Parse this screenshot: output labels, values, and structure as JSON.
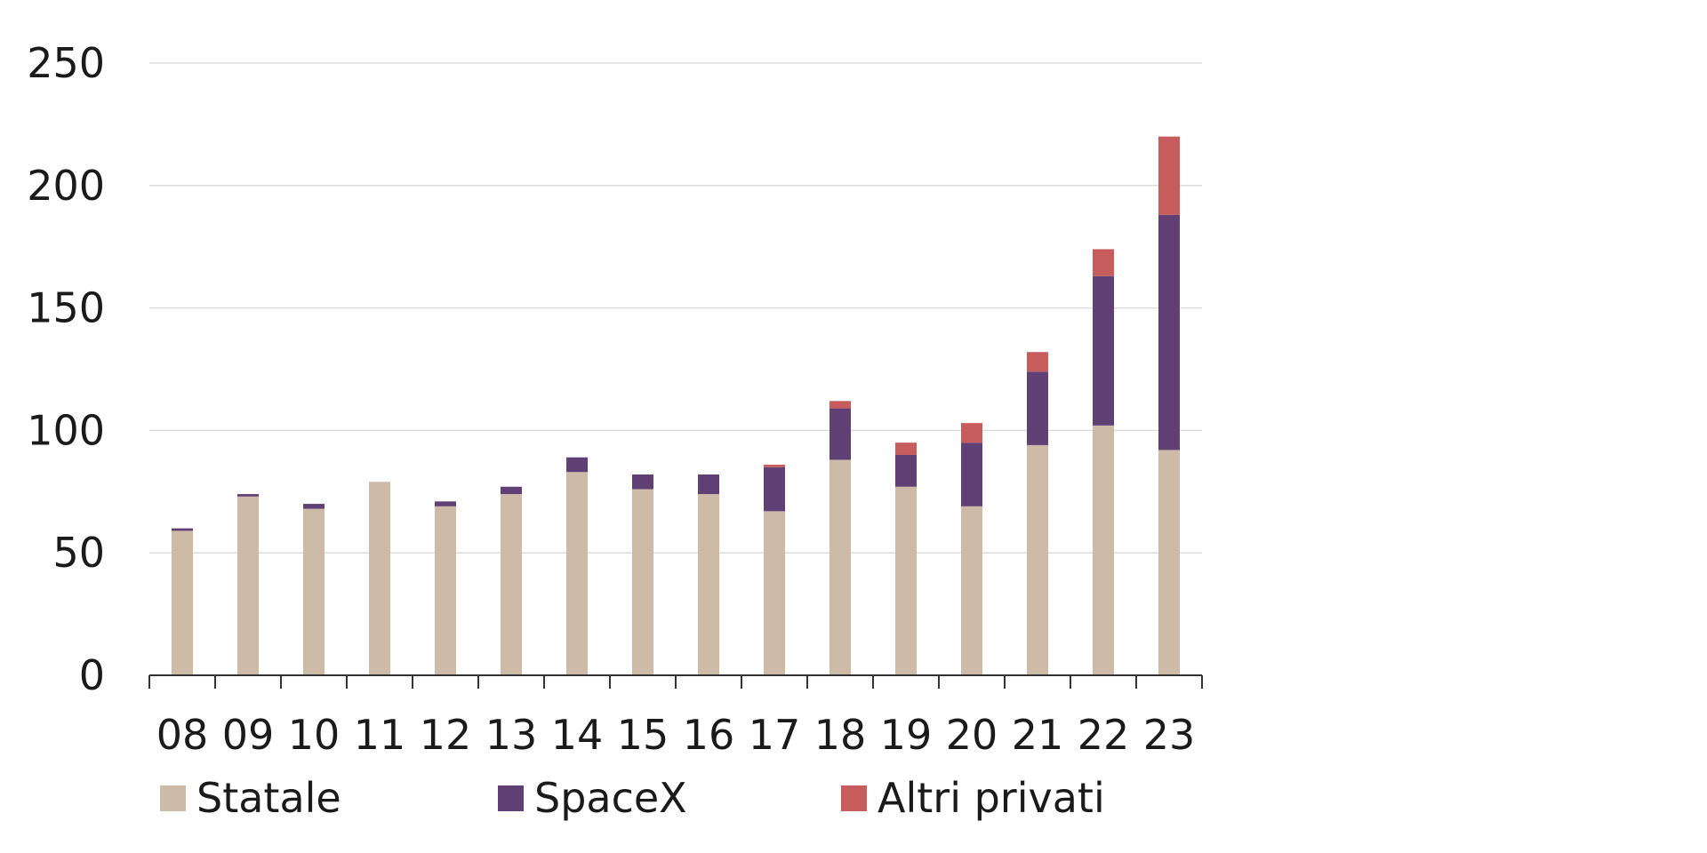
{
  "chart_data": {
    "type": "bar",
    "stacked": true,
    "categories": [
      "08",
      "09",
      "10",
      "11",
      "12",
      "13",
      "14",
      "15",
      "16",
      "17",
      "18",
      "19",
      "20",
      "21",
      "22",
      "23"
    ],
    "series": [
      {
        "name": "Statale",
        "color": "#cdbba8",
        "values": [
          59,
          73,
          68,
          79,
          69,
          74,
          83,
          76,
          74,
          67,
          88,
          77,
          69,
          94,
          102,
          92
        ]
      },
      {
        "name": "SpaceX",
        "color": "#614076",
        "values": [
          1,
          1,
          2,
          0,
          2,
          3,
          6,
          6,
          8,
          18,
          21,
          13,
          26,
          30,
          61,
          96
        ]
      },
      {
        "name": "Altri privati",
        "color": "#c65c5c",
        "values": [
          0,
          0,
          0,
          0,
          0,
          0,
          0,
          0,
          0,
          1,
          3,
          5,
          8,
          8,
          11,
          32
        ]
      }
    ],
    "ylim": [
      0,
      250
    ],
    "yticks": [
      0,
      50,
      100,
      150,
      200,
      250
    ],
    "grid": true,
    "legend": "bottom",
    "title": "",
    "xlabel": "",
    "ylabel": ""
  }
}
